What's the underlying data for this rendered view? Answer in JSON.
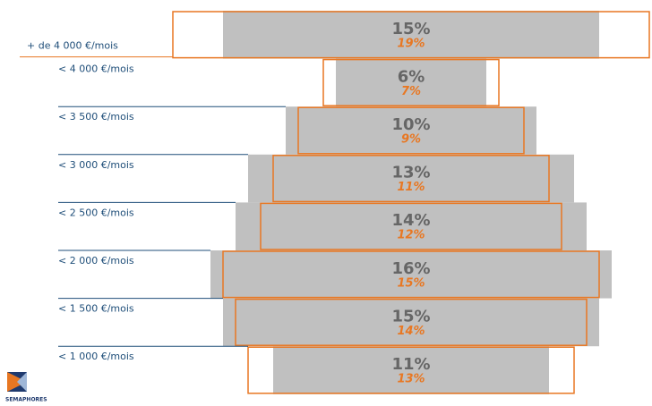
{
  "chart_data": {
    "type": "centered-bar",
    "categories": [
      "+ de 4 000 €/mois",
      "< 4 000 €/mois",
      "< 3 500 €/mois",
      "< 3 000 €/mois",
      "< 2 500 €/mois",
      "< 2 000 €/mois",
      "< 1 500 €/mois",
      "< 1 000 €/mois"
    ],
    "series": [
      {
        "color": "#c0c0c0",
        "values": [
          15,
          6,
          10,
          13,
          14,
          16,
          15,
          11
        ],
        "value_labels": [
          "15%",
          "6%",
          "10%",
          "13%",
          "14%",
          "16%",
          "15%",
          "11%"
        ]
      },
      {
        "color": "#e87722",
        "values": [
          19,
          7,
          9,
          11,
          12,
          15,
          14,
          13
        ],
        "value_labels": [
          "19%",
          "7%",
          "9%",
          "11%",
          "12%",
          "15%",
          "14%",
          "13%"
        ]
      }
    ]
  },
  "logo": "SEMAPHORES"
}
